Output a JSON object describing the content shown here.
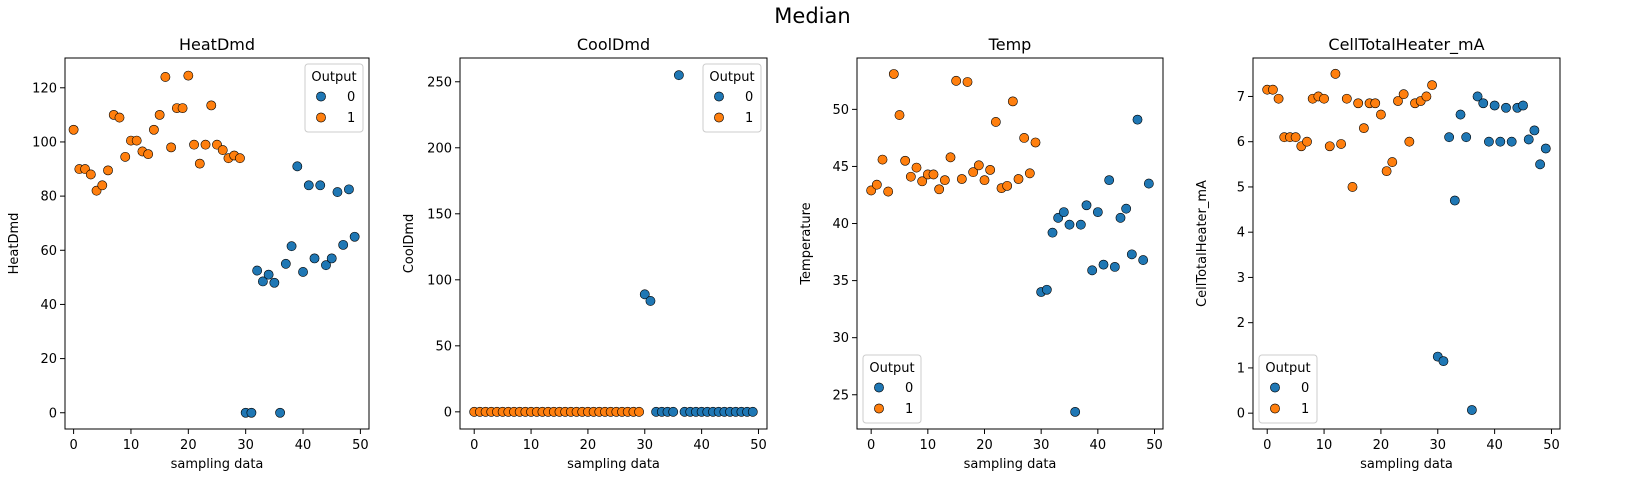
{
  "figure": {
    "suptitle": "Median"
  },
  "colors": {
    "class_0": "#1f77b4",
    "class_1": "#ff7f0e",
    "marker_edge": "#000000"
  },
  "chart_data": [
    {
      "type": "scatter",
      "title": "HeatDmd",
      "xlabel": "sampling data",
      "ylabel": "HeatDmd",
      "xlim": [
        -1.5,
        51.5
      ],
      "ylim": [
        -6,
        131
      ],
      "xticks": [
        0,
        10,
        20,
        30,
        40,
        50
      ],
      "yticks": [
        0,
        20,
        40,
        60,
        80,
        100,
        120
      ],
      "legend": {
        "title": "Output",
        "labels": [
          "0",
          "1"
        ],
        "placement": "upper right"
      },
      "series": [
        {
          "name": "0",
          "x": [
            30,
            31,
            32,
            33,
            34,
            35,
            36,
            37,
            38,
            39,
            40,
            41,
            42,
            43,
            44,
            45,
            46,
            47,
            48,
            49
          ],
          "y": [
            0,
            0,
            52.5,
            48.5,
            51,
            48,
            0,
            55,
            61.5,
            91,
            52,
            84,
            57,
            84,
            54.5,
            57,
            81.5,
            62,
            82.5,
            65
          ]
        },
        {
          "name": "1",
          "x": [
            0,
            1,
            2,
            3,
            4,
            5,
            6,
            7,
            8,
            9,
            10,
            11,
            12,
            13,
            14,
            15,
            16,
            17,
            18,
            19,
            20,
            21,
            22,
            23,
            24,
            25,
            26,
            27,
            28,
            29
          ],
          "y": [
            104.5,
            90,
            90,
            88,
            82,
            84,
            89.5,
            110,
            109,
            94.5,
            100.5,
            100.5,
            96.5,
            95.5,
            104.5,
            110,
            124,
            98,
            112.5,
            112.5,
            124.5,
            99,
            92,
            99,
            113.5,
            99,
            97,
            94,
            95,
            94
          ]
        }
      ]
    },
    {
      "type": "scatter",
      "title": "CoolDmd",
      "xlabel": "sampling data",
      "ylabel": "CoolDmd",
      "xlim": [
        -2.5,
        51.5
      ],
      "ylim": [
        -13,
        268
      ],
      "xticks": [
        0,
        10,
        20,
        30,
        40,
        50
      ],
      "yticks": [
        0,
        50,
        100,
        150,
        200,
        250
      ],
      "legend": {
        "title": "Output",
        "labels": [
          "0",
          "1"
        ],
        "placement": "upper right"
      },
      "series": [
        {
          "name": "0",
          "x": [
            30,
            31,
            32,
            33,
            34,
            35,
            36,
            37,
            38,
            39,
            40,
            41,
            42,
            43,
            44,
            45,
            46,
            47,
            48,
            49
          ],
          "y": [
            89,
            84,
            0,
            0,
            0,
            0,
            255,
            0,
            0,
            0,
            0,
            0,
            0,
            0,
            0,
            0,
            0,
            0,
            0,
            0
          ]
        },
        {
          "name": "1",
          "x": [
            0,
            1,
            2,
            3,
            4,
            5,
            6,
            7,
            8,
            9,
            10,
            11,
            12,
            13,
            14,
            15,
            16,
            17,
            18,
            19,
            20,
            21,
            22,
            23,
            24,
            25,
            26,
            27,
            28,
            29
          ],
          "y": [
            0,
            0,
            0,
            0,
            0,
            0,
            0,
            0,
            0,
            0,
            0,
            0,
            0,
            0,
            0,
            0,
            0,
            0,
            0,
            0,
            0,
            0,
            0,
            0,
            0,
            0,
            0,
            0,
            0,
            0
          ]
        }
      ]
    },
    {
      "type": "scatter",
      "title": "Temp",
      "xlabel": "sampling data",
      "ylabel": "Temperature",
      "xlim": [
        -2.5,
        51.5
      ],
      "ylim": [
        22,
        54.5
      ],
      "xticks": [
        0,
        10,
        20,
        30,
        40,
        50
      ],
      "yticks": [
        25,
        30,
        35,
        40,
        45,
        50
      ],
      "legend": {
        "title": "Output",
        "labels": [
          "0",
          "1"
        ],
        "placement": "lower left"
      },
      "series": [
        {
          "name": "0",
          "x": [
            30,
            31,
            32,
            33,
            34,
            35,
            36,
            37,
            38,
            39,
            40,
            41,
            42,
            43,
            44,
            45,
            46,
            47,
            48,
            49
          ],
          "y": [
            34,
            34.2,
            39.2,
            40.5,
            41,
            39.9,
            23.5,
            39.9,
            41.6,
            35.9,
            41,
            36.4,
            43.8,
            36.2,
            40.5,
            41.3,
            37.3,
            49.1,
            36.8,
            43.5
          ]
        },
        {
          "name": "1",
          "x": [
            0,
            1,
            2,
            3,
            4,
            5,
            6,
            7,
            8,
            9,
            10,
            11,
            12,
            13,
            14,
            15,
            16,
            17,
            18,
            19,
            20,
            21,
            22,
            23,
            24,
            25,
            26,
            27,
            28,
            29
          ],
          "y": [
            42.9,
            43.4,
            45.6,
            42.8,
            53.1,
            49.5,
            45.5,
            44.1,
            44.9,
            43.7,
            44.3,
            44.3,
            43,
            43.8,
            45.8,
            52.5,
            43.9,
            52.4,
            44.5,
            45.1,
            43.8,
            44.7,
            48.9,
            43.1,
            43.3,
            50.7,
            43.9,
            47.5,
            44.4,
            47.1
          ]
        }
      ]
    },
    {
      "type": "scatter",
      "title": "CellTotalHeater_mA",
      "xlabel": "sampling data",
      "ylabel": "CellTotalHeater_mA",
      "xlim": [
        -2.5,
        51.5
      ],
      "ylim": [
        -0.35,
        7.85
      ],
      "xticks": [
        0,
        10,
        20,
        30,
        40,
        50
      ],
      "yticks": [
        0,
        1,
        2,
        3,
        4,
        5,
        6,
        7
      ],
      "legend": {
        "title": "Output",
        "labels": [
          "0",
          "1"
        ],
        "placement": "lower left"
      },
      "series": [
        {
          "name": "0",
          "x": [
            30,
            31,
            32,
            33,
            34,
            35,
            36,
            37,
            38,
            39,
            40,
            41,
            42,
            43,
            44,
            45,
            46,
            47,
            48,
            49
          ],
          "y": [
            1.25,
            1.15,
            6.1,
            4.7,
            6.6,
            6.1,
            0.07,
            7,
            6.85,
            6,
            6.8,
            6,
            6.75,
            6,
            6.75,
            6.8,
            6.05,
            6.25,
            5.5,
            5.85
          ]
        },
        {
          "name": "1",
          "x": [
            0,
            1,
            2,
            3,
            4,
            5,
            6,
            7,
            8,
            9,
            10,
            11,
            12,
            13,
            14,
            15,
            16,
            17,
            18,
            19,
            20,
            21,
            22,
            23,
            24,
            25,
            26,
            27,
            28,
            29
          ],
          "y": [
            7.15,
            7.15,
            6.95,
            6.1,
            6.1,
            6.1,
            5.9,
            6,
            6.95,
            7,
            6.95,
            5.9,
            7.5,
            5.95,
            6.95,
            5,
            6.85,
            6.3,
            6.85,
            6.85,
            6.6,
            5.35,
            5.55,
            6.9,
            7.05,
            6,
            6.85,
            6.9,
            7,
            7.25
          ]
        }
      ]
    }
  ]
}
